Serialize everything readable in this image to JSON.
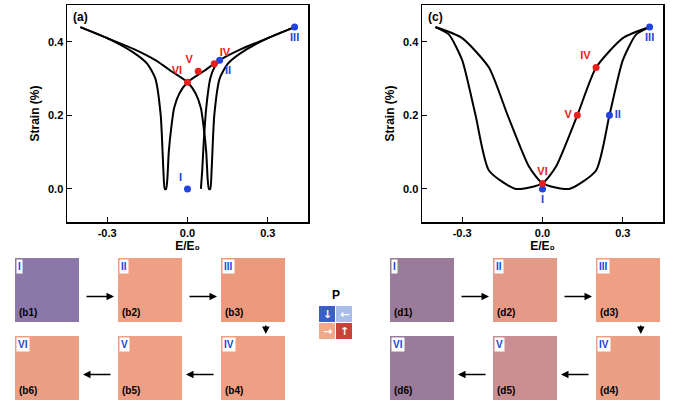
{
  "chart_data": [
    {
      "type": "line",
      "panel": "(a)",
      "x_label": "E/E₀",
      "y_label": "Strain (%)",
      "xlim": [
        -0.45,
        0.45
      ],
      "ylim": [
        -0.09,
        0.5
      ],
      "xticks": [
        -0.3,
        {
          "value": 0,
          "label": "0.0"
        },
        0.3
      ],
      "yticks": [
        {
          "value": 0,
          "label": "0.0"
        },
        0.2,
        0.4
      ],
      "grid": false,
      "series": [
        {
          "color": "#000000",
          "x": [
            0.4,
            0.3,
            0.2,
            0.12,
            0.06,
            0.0,
            -0.03,
            -0.05,
            -0.06,
            -0.07,
            -0.075,
            -0.08,
            -0.085,
            -0.09,
            -0.1,
            -0.12,
            -0.15,
            -0.2,
            -0.3,
            -0.4
          ],
          "values": [
            0.44,
            0.41,
            0.38,
            0.35,
            0.32,
            0.29,
            0.26,
            0.22,
            0.17,
            0.1,
            0.03,
            0.0,
            0.0,
            0.05,
            0.2,
            0.3,
            0.34,
            0.37,
            0.41,
            0.44
          ]
        },
        {
          "color": "#000000",
          "x": [
            -0.4,
            -0.3,
            -0.2,
            -0.12,
            -0.06,
            0.0,
            0.03,
            0.05,
            0.06,
            0.07,
            0.075,
            0.08,
            0.085,
            0.09,
            0.1,
            0.12,
            0.15,
            0.2,
            0.3,
            0.4
          ],
          "values": [
            0.44,
            0.41,
            0.38,
            0.35,
            0.32,
            0.29,
            0.26,
            0.22,
            0.17,
            0.1,
            0.03,
            0.0,
            0.0,
            0.05,
            0.2,
            0.3,
            0.34,
            0.37,
            0.41,
            0.44
          ]
        },
        {
          "color": "#000000",
          "x": [
            0.05,
            0.055,
            0.06,
            0.07,
            0.085,
            0.1,
            0.12
          ],
          "values": [
            0.0,
            0.05,
            0.12,
            0.22,
            0.3,
            0.33,
            0.35
          ]
        }
      ],
      "points": [
        {
          "label": "I",
          "x": 0.0,
          "y": 0.0,
          "color": "#2244dd"
        },
        {
          "label": "II",
          "x": 0.12,
          "y": 0.35,
          "color": "#2244dd"
        },
        {
          "label": "III",
          "x": 0.4,
          "y": 0.44,
          "color": "#2244dd"
        },
        {
          "label": "IV",
          "x": 0.1,
          "y": 0.34,
          "color": "#e8201c"
        },
        {
          "label": "V",
          "x": 0.04,
          "y": 0.32,
          "color": "#e8201c"
        },
        {
          "label": "VI",
          "x": 0.0,
          "y": 0.29,
          "color": "#e8201c"
        }
      ]
    },
    {
      "type": "line",
      "panel": "(c)",
      "x_label": "E/E₀",
      "y_label": "Strain (%)",
      "xlim": [
        -0.45,
        0.45
      ],
      "ylim": [
        -0.09,
        0.5
      ],
      "xticks": [
        -0.3,
        {
          "value": 0,
          "label": "0.0"
        },
        0.3
      ],
      "yticks": [
        {
          "value": 0,
          "label": "0.0"
        },
        0.2,
        0.4
      ],
      "grid": false,
      "series": [
        {
          "color": "#000000",
          "x": [
            0.4,
            0.3,
            0.2,
            0.13,
            0.05,
            0.0,
            -0.1,
            -0.2,
            -0.25,
            -0.3,
            -0.35,
            -0.4
          ],
          "values": [
            0.44,
            0.41,
            0.33,
            0.2,
            0.06,
            0.015,
            0.0,
            0.05,
            0.2,
            0.35,
            0.42,
            0.44
          ]
        },
        {
          "color": "#000000",
          "x": [
            -0.4,
            -0.3,
            -0.2,
            -0.13,
            -0.05,
            0.0,
            0.1,
            0.2,
            0.25,
            0.3,
            0.35,
            0.4
          ],
          "values": [
            0.44,
            0.41,
            0.33,
            0.2,
            0.06,
            0.015,
            0.0,
            0.05,
            0.2,
            0.35,
            0.42,
            0.44
          ]
        }
      ],
      "points": [
        {
          "label": "I",
          "x": 0.0,
          "y": 0.0,
          "color": "#2244dd"
        },
        {
          "label": "II",
          "x": 0.25,
          "y": 0.2,
          "color": "#2244dd"
        },
        {
          "label": "III",
          "x": 0.4,
          "y": 0.44,
          "color": "#2244dd"
        },
        {
          "label": "IV",
          "x": 0.2,
          "y": 0.33,
          "color": "#e8201c"
        },
        {
          "label": "V",
          "x": 0.13,
          "y": 0.2,
          "color": "#e8201c"
        },
        {
          "label": "VI",
          "x": 0.0,
          "y": 0.015,
          "color": "#e8201c"
        }
      ]
    }
  ],
  "panels": {
    "b": [
      {
        "state": "I",
        "label": "(b1)",
        "color": "#8c78a8"
      },
      {
        "state": "II",
        "label": "(b2)",
        "color": "#ee9f84"
      },
      {
        "state": "III",
        "label": "(b3)",
        "color": "#ec9a7e"
      },
      {
        "state": "IV",
        "label": "(b4)",
        "color": "#ee9f84"
      },
      {
        "state": "V",
        "label": "(b5)",
        "color": "#ee9f84"
      },
      {
        "state": "VI",
        "label": "(b6)",
        "color": "#eba086"
      }
    ],
    "d": [
      {
        "state": "I",
        "label": "(d1)",
        "color": "#9a7c9a"
      },
      {
        "state": "II",
        "label": "(d2)",
        "color": "#e39a88"
      },
      {
        "state": "III",
        "label": "(d3)",
        "color": "#ee9f84"
      },
      {
        "state": "IV",
        "label": "(d4)",
        "color": "#eba085"
      },
      {
        "state": "V",
        "label": "(d5)",
        "color": "#c98f92"
      },
      {
        "state": "VI",
        "label": "(d6)",
        "color": "#9a7c9a"
      }
    ]
  },
  "polarization_legend": {
    "title": "P",
    "items": [
      {
        "symbol": "↓",
        "color": "#3a5fc8"
      },
      {
        "symbol": "←",
        "color": "#a9bde8"
      },
      {
        "symbol": "→",
        "color": "#f0a98a"
      },
      {
        "symbol": "↑",
        "color": "#c9423a"
      }
    ]
  }
}
